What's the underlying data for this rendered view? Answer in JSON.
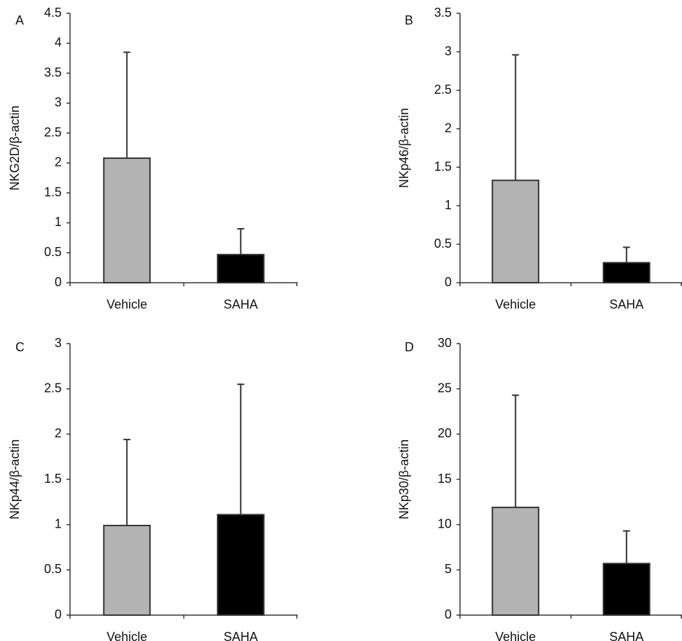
{
  "chart_data": [
    {
      "type": "bar",
      "panel_label": "A",
      "ylabel": "NKG2D/β-actin",
      "categories": [
        "Vehicle",
        "SAHA"
      ],
      "values": [
        2.08,
        0.47
      ],
      "errors": [
        1.77,
        0.43
      ],
      "colors": [
        "#b3b3b3",
        "#000000"
      ],
      "ylim": [
        0,
        4.5
      ],
      "yticks": [
        0,
        0.5,
        1,
        1.5,
        2,
        2.5,
        3,
        3.5,
        4,
        4.5
      ]
    },
    {
      "type": "bar",
      "panel_label": "B",
      "ylabel": "NKp46/β-actin",
      "categories": [
        "Vehicle",
        "SAHA"
      ],
      "values": [
        1.33,
        0.26
      ],
      "errors": [
        1.63,
        0.2
      ],
      "colors": [
        "#b3b3b3",
        "#000000"
      ],
      "ylim": [
        0,
        3.5
      ],
      "yticks": [
        0,
        0.5,
        1,
        1.5,
        2,
        2.5,
        3,
        3.5
      ]
    },
    {
      "type": "bar",
      "panel_label": "C",
      "ylabel": "NKp44/β-actin",
      "categories": [
        "Vehicle",
        "SAHA"
      ],
      "values": [
        0.99,
        1.11
      ],
      "errors": [
        0.95,
        1.44
      ],
      "colors": [
        "#b3b3b3",
        "#000000"
      ],
      "ylim": [
        0,
        3
      ],
      "yticks": [
        0,
        0.5,
        1,
        1.5,
        2,
        2.5,
        3
      ]
    },
    {
      "type": "bar",
      "panel_label": "D",
      "ylabel": "NKp30/β-actin",
      "categories": [
        "Vehicle",
        "SAHA"
      ],
      "values": [
        11.9,
        5.7
      ],
      "errors": [
        12.4,
        3.6
      ],
      "colors": [
        "#b3b3b3",
        "#000000"
      ],
      "ylim": [
        0,
        30
      ],
      "yticks": [
        0,
        5,
        10,
        15,
        20,
        25,
        30
      ]
    }
  ]
}
